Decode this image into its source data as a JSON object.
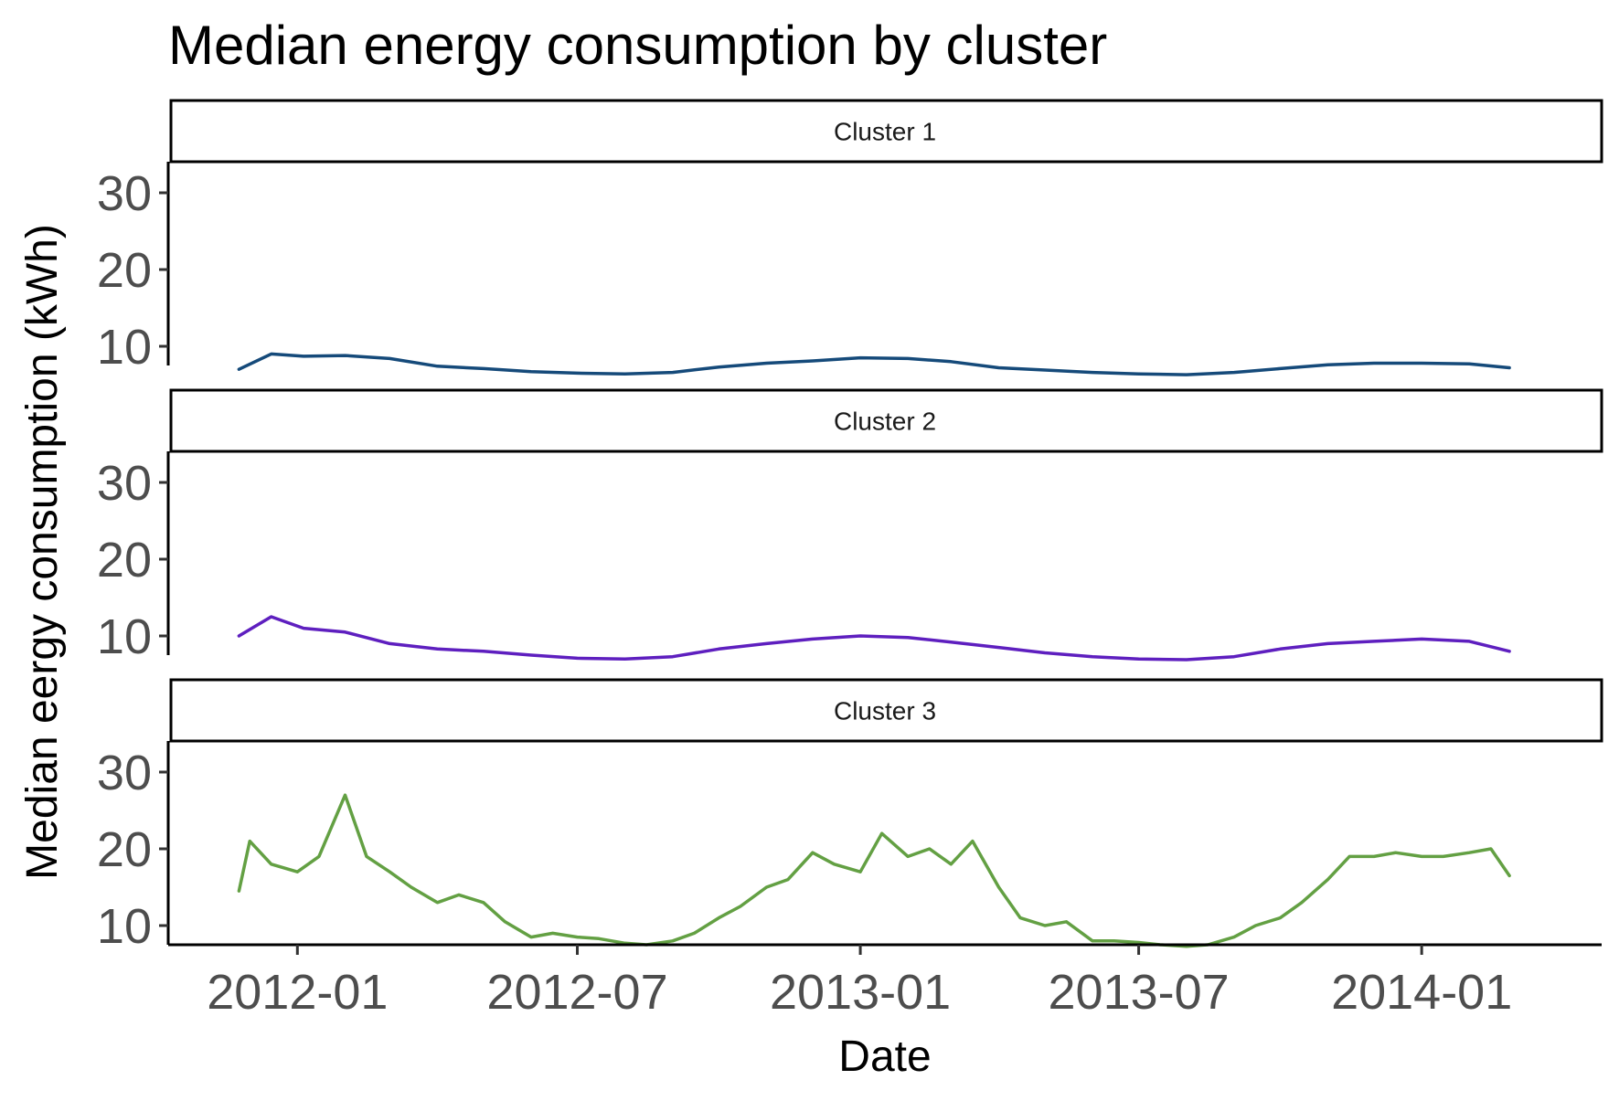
{
  "chart_data": {
    "type": "line",
    "title": "Median energy consumption by cluster",
    "xlabel": "Date",
    "ylabel": "Median eergy consumption (kWh)",
    "x_ticks": [
      "2012-01",
      "2012-07",
      "2013-01",
      "2013-07",
      "2014-01"
    ],
    "y_ticks": [
      10,
      20,
      30
    ],
    "ylim": [
      4,
      39
    ],
    "xlim": [
      "2011-10-09",
      "2014-04-28"
    ],
    "grid": false,
    "facets": [
      "Cluster 1",
      "Cluster 2",
      "Cluster 3"
    ],
    "series": [
      {
        "name": "Cluster 1",
        "color": "#154a7a",
        "x": [
          "2011-11-24",
          "2011-12-15",
          "2012-01-05",
          "2012-02-01",
          "2012-03-01",
          "2012-04-01",
          "2012-05-01",
          "2012-06-01",
          "2012-07-01",
          "2012-08-01",
          "2012-09-01",
          "2012-10-01",
          "2012-11-01",
          "2012-12-01",
          "2013-01-01",
          "2013-02-01",
          "2013-03-01",
          "2013-04-01",
          "2013-05-01",
          "2013-06-01",
          "2013-07-01",
          "2013-08-01",
          "2013-09-01",
          "2013-10-01",
          "2013-11-01",
          "2013-12-01",
          "2014-01-01",
          "2014-02-01",
          "2014-02-27"
        ],
        "values": [
          7.0,
          9.0,
          8.7,
          8.8,
          8.4,
          7.4,
          7.1,
          6.7,
          6.5,
          6.4,
          6.6,
          7.3,
          7.8,
          8.1,
          8.5,
          8.4,
          8.0,
          7.2,
          6.9,
          6.6,
          6.4,
          6.3,
          6.6,
          7.1,
          7.6,
          7.8,
          7.8,
          7.7,
          7.2
        ]
      },
      {
        "name": "Cluster 2",
        "color": "#5e1fbf",
        "x": [
          "2011-11-24",
          "2011-12-15",
          "2012-01-05",
          "2012-02-01",
          "2012-03-01",
          "2012-04-01",
          "2012-05-01",
          "2012-06-01",
          "2012-07-01",
          "2012-08-01",
          "2012-09-01",
          "2012-10-01",
          "2012-11-01",
          "2012-12-01",
          "2013-01-01",
          "2013-02-01",
          "2013-03-01",
          "2013-04-01",
          "2013-05-01",
          "2013-06-01",
          "2013-07-01",
          "2013-08-01",
          "2013-09-01",
          "2013-10-01",
          "2013-11-01",
          "2013-12-01",
          "2014-01-01",
          "2014-02-01",
          "2014-02-27"
        ],
        "values": [
          10.0,
          12.5,
          11.0,
          10.5,
          9.0,
          8.3,
          8.0,
          7.5,
          7.1,
          7.0,
          7.3,
          8.3,
          9.0,
          9.6,
          10.0,
          9.8,
          9.2,
          8.5,
          7.8,
          7.3,
          7.0,
          6.9,
          7.3,
          8.3,
          9.0,
          9.3,
          9.6,
          9.3,
          8.0
        ]
      },
      {
        "name": "Cluster 3",
        "color": "#63a043",
        "x": [
          "2011-11-24",
          "2011-12-01",
          "2011-12-15",
          "2012-01-01",
          "2012-01-15",
          "2012-02-01",
          "2012-02-15",
          "2012-03-01",
          "2012-03-15",
          "2012-04-01",
          "2012-04-15",
          "2012-05-01",
          "2012-05-15",
          "2012-06-01",
          "2012-06-15",
          "2012-07-01",
          "2012-07-15",
          "2012-08-01",
          "2012-08-15",
          "2012-09-01",
          "2012-09-15",
          "2012-10-01",
          "2012-10-15",
          "2012-11-01",
          "2012-11-15",
          "2012-12-01",
          "2012-12-15",
          "2013-01-01",
          "2013-01-15",
          "2013-02-01",
          "2013-02-15",
          "2013-03-01",
          "2013-03-15",
          "2013-04-01",
          "2013-04-15",
          "2013-05-01",
          "2013-05-15",
          "2013-06-01",
          "2013-06-15",
          "2013-07-01",
          "2013-07-15",
          "2013-08-01",
          "2013-08-15",
          "2013-09-01",
          "2013-09-15",
          "2013-10-01",
          "2013-10-15",
          "2013-11-01",
          "2013-11-15",
          "2013-12-01",
          "2013-12-15",
          "2014-01-01",
          "2014-01-15",
          "2014-02-01",
          "2014-02-15",
          "2014-02-27"
        ],
        "values": [
          14.5,
          21.0,
          18.0,
          17.0,
          19.0,
          27.0,
          19.0,
          17.0,
          15.0,
          13.0,
          14.0,
          13.0,
          10.5,
          8.5,
          9.0,
          8.5,
          8.3,
          7.7,
          7.5,
          8.0,
          9.0,
          11.0,
          12.5,
          15.0,
          16.0,
          19.5,
          18.0,
          17.0,
          22.0,
          19.0,
          20.0,
          18.0,
          21.0,
          15.0,
          11.0,
          10.0,
          10.5,
          8.0,
          8.0,
          7.8,
          7.5,
          7.3,
          7.5,
          8.5,
          10.0,
          11.0,
          13.0,
          16.0,
          19.0,
          19.0,
          19.5,
          19.0,
          19.0,
          19.5,
          20.0,
          16.5
        ]
      }
    ]
  }
}
